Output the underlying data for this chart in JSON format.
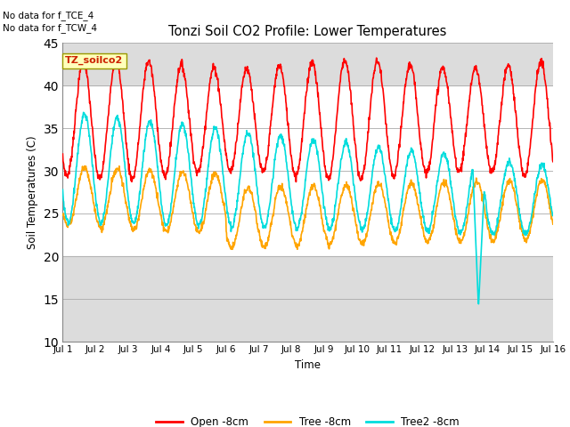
{
  "title": "Tonzi Soil CO2 Profile: Lower Temperatures",
  "ylabel": "Soil Temperatures (C)",
  "xlabel": "Time",
  "note1": "No data for f_TCE_4",
  "note2": "No data for f_TCW_4",
  "file_label": "TZ_soilco2",
  "ylim": [
    10,
    45
  ],
  "yticks": [
    10,
    15,
    20,
    25,
    30,
    35,
    40,
    45
  ],
  "xtick_labels": [
    "Jul 1",
    "Jul 2",
    "Jul 3",
    "Jul 4",
    "Jul 5",
    "Jul 6",
    "Jul 7",
    "Jul 8",
    "Jul 9",
    "Jul 10",
    "Jul 11",
    "Jul 12",
    "Jul 13",
    "Jul 14",
    "Jul 15",
    "Jul 16"
  ],
  "color_open": "#FF0000",
  "color_tree": "#FFA500",
  "color_tree2": "#00DDDD",
  "legend_labels": [
    "Open -8cm",
    "Tree -8cm",
    "Tree2 -8cm"
  ],
  "bg_gray": "#DCDCDC",
  "shaded_upper": 40,
  "shaded_lower": 20,
  "lw": 1.2
}
